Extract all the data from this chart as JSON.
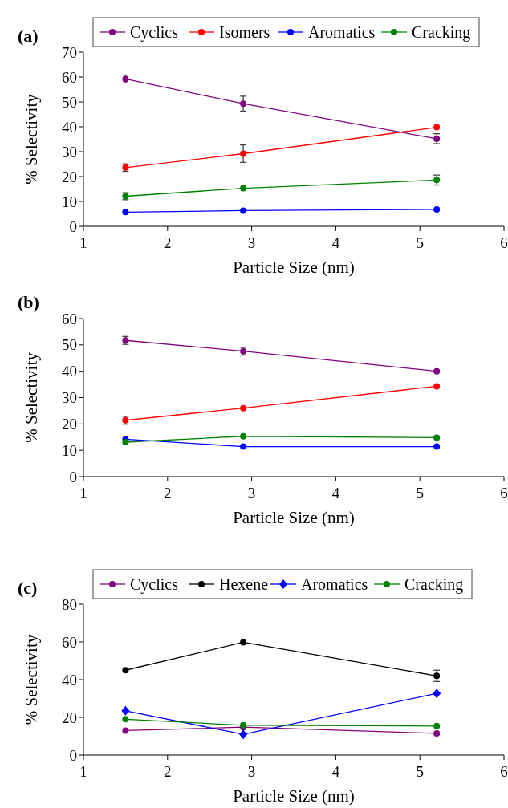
{
  "chart_data": [
    {
      "type": "line",
      "title": "(a)",
      "xlabel": "Particle Size (nm)",
      "ylabel": "% Selectivity",
      "xlim": [
        1,
        6
      ],
      "xticks": [
        1,
        2,
        3,
        4,
        5,
        6
      ],
      "ylim": [
        0,
        70
      ],
      "yticks": [
        0,
        10,
        20,
        30,
        40,
        50,
        60,
        70
      ],
      "legend": "top",
      "marker": "circle",
      "x": [
        1.5,
        2.9,
        5.2
      ],
      "series": [
        {
          "name": "Cyclics",
          "color": "#800080",
          "values": [
            59.2,
            49.3,
            35.2
          ],
          "errors": [
            1.6,
            3,
            2
          ]
        },
        {
          "name": "Isomers",
          "color": "#ff0000",
          "values": [
            23.6,
            29.2,
            39.8
          ],
          "errors": [
            1.5,
            3.5,
            null
          ]
        },
        {
          "name": "Aromatics",
          "color": "#0000ff",
          "values": [
            5.7,
            6.3,
            6.8
          ]
        },
        {
          "name": "Cracking",
          "color": "#008000",
          "values": [
            12.1,
            15.3,
            18.6
          ],
          "errors": [
            1.4,
            null,
            2
          ]
        }
      ]
    },
    {
      "type": "line",
      "title": "(b)",
      "xlabel": "Particle Size (nm)",
      "ylabel": "% Selectivity",
      "xlim": [
        1,
        6
      ],
      "xticks": [
        1,
        2,
        3,
        4,
        5,
        6
      ],
      "ylim": [
        0,
        60
      ],
      "yticks": [
        0,
        10,
        20,
        30,
        40,
        50,
        60
      ],
      "marker": "circle",
      "x": [
        1.5,
        2.9,
        5.2
      ],
      "series": [
        {
          "color": "#800080",
          "values": [
            51.7,
            47.6,
            40.0
          ],
          "errors": [
            1.5,
            1.5,
            null
          ]
        },
        {
          "color": "#ff0000",
          "values": [
            21.4,
            26.0,
            34.3
          ],
          "errors": [
            1.5,
            null,
            null
          ]
        },
        {
          "color": "#0000ff",
          "values": [
            14.2,
            11.4,
            11.4
          ]
        },
        {
          "color": "#008000",
          "values": [
            13.1,
            15.3,
            14.8
          ]
        }
      ]
    },
    {
      "type": "line",
      "title": "(c)",
      "xlabel": "Particle Size (nm)",
      "ylabel": "% Selectivity",
      "xlim": [
        1,
        6
      ],
      "xticks": [
        1,
        2,
        3,
        4,
        5,
        6
      ],
      "ylim": [
        0,
        80
      ],
      "yticks": [
        0,
        20,
        40,
        60,
        80
      ],
      "legend": "top",
      "marker": "circle",
      "x": [
        1.5,
        2.9,
        5.2
      ],
      "series": [
        {
          "name": "Cyclics",
          "color": "#800080",
          "values": [
            13,
            14.8,
            11.5
          ]
        },
        {
          "name": "Hexene",
          "color": "#000000",
          "values": [
            45,
            59.8,
            42
          ],
          "errors": [
            null,
            null,
            3
          ]
        },
        {
          "name": "Aromatics",
          "color": "#0000ff",
          "values": [
            23.5,
            11,
            32.7
          ],
          "marker": "diamond"
        },
        {
          "name": "Cracking",
          "color": "#008000",
          "values": [
            19,
            15.8,
            15.4
          ]
        }
      ]
    }
  ]
}
